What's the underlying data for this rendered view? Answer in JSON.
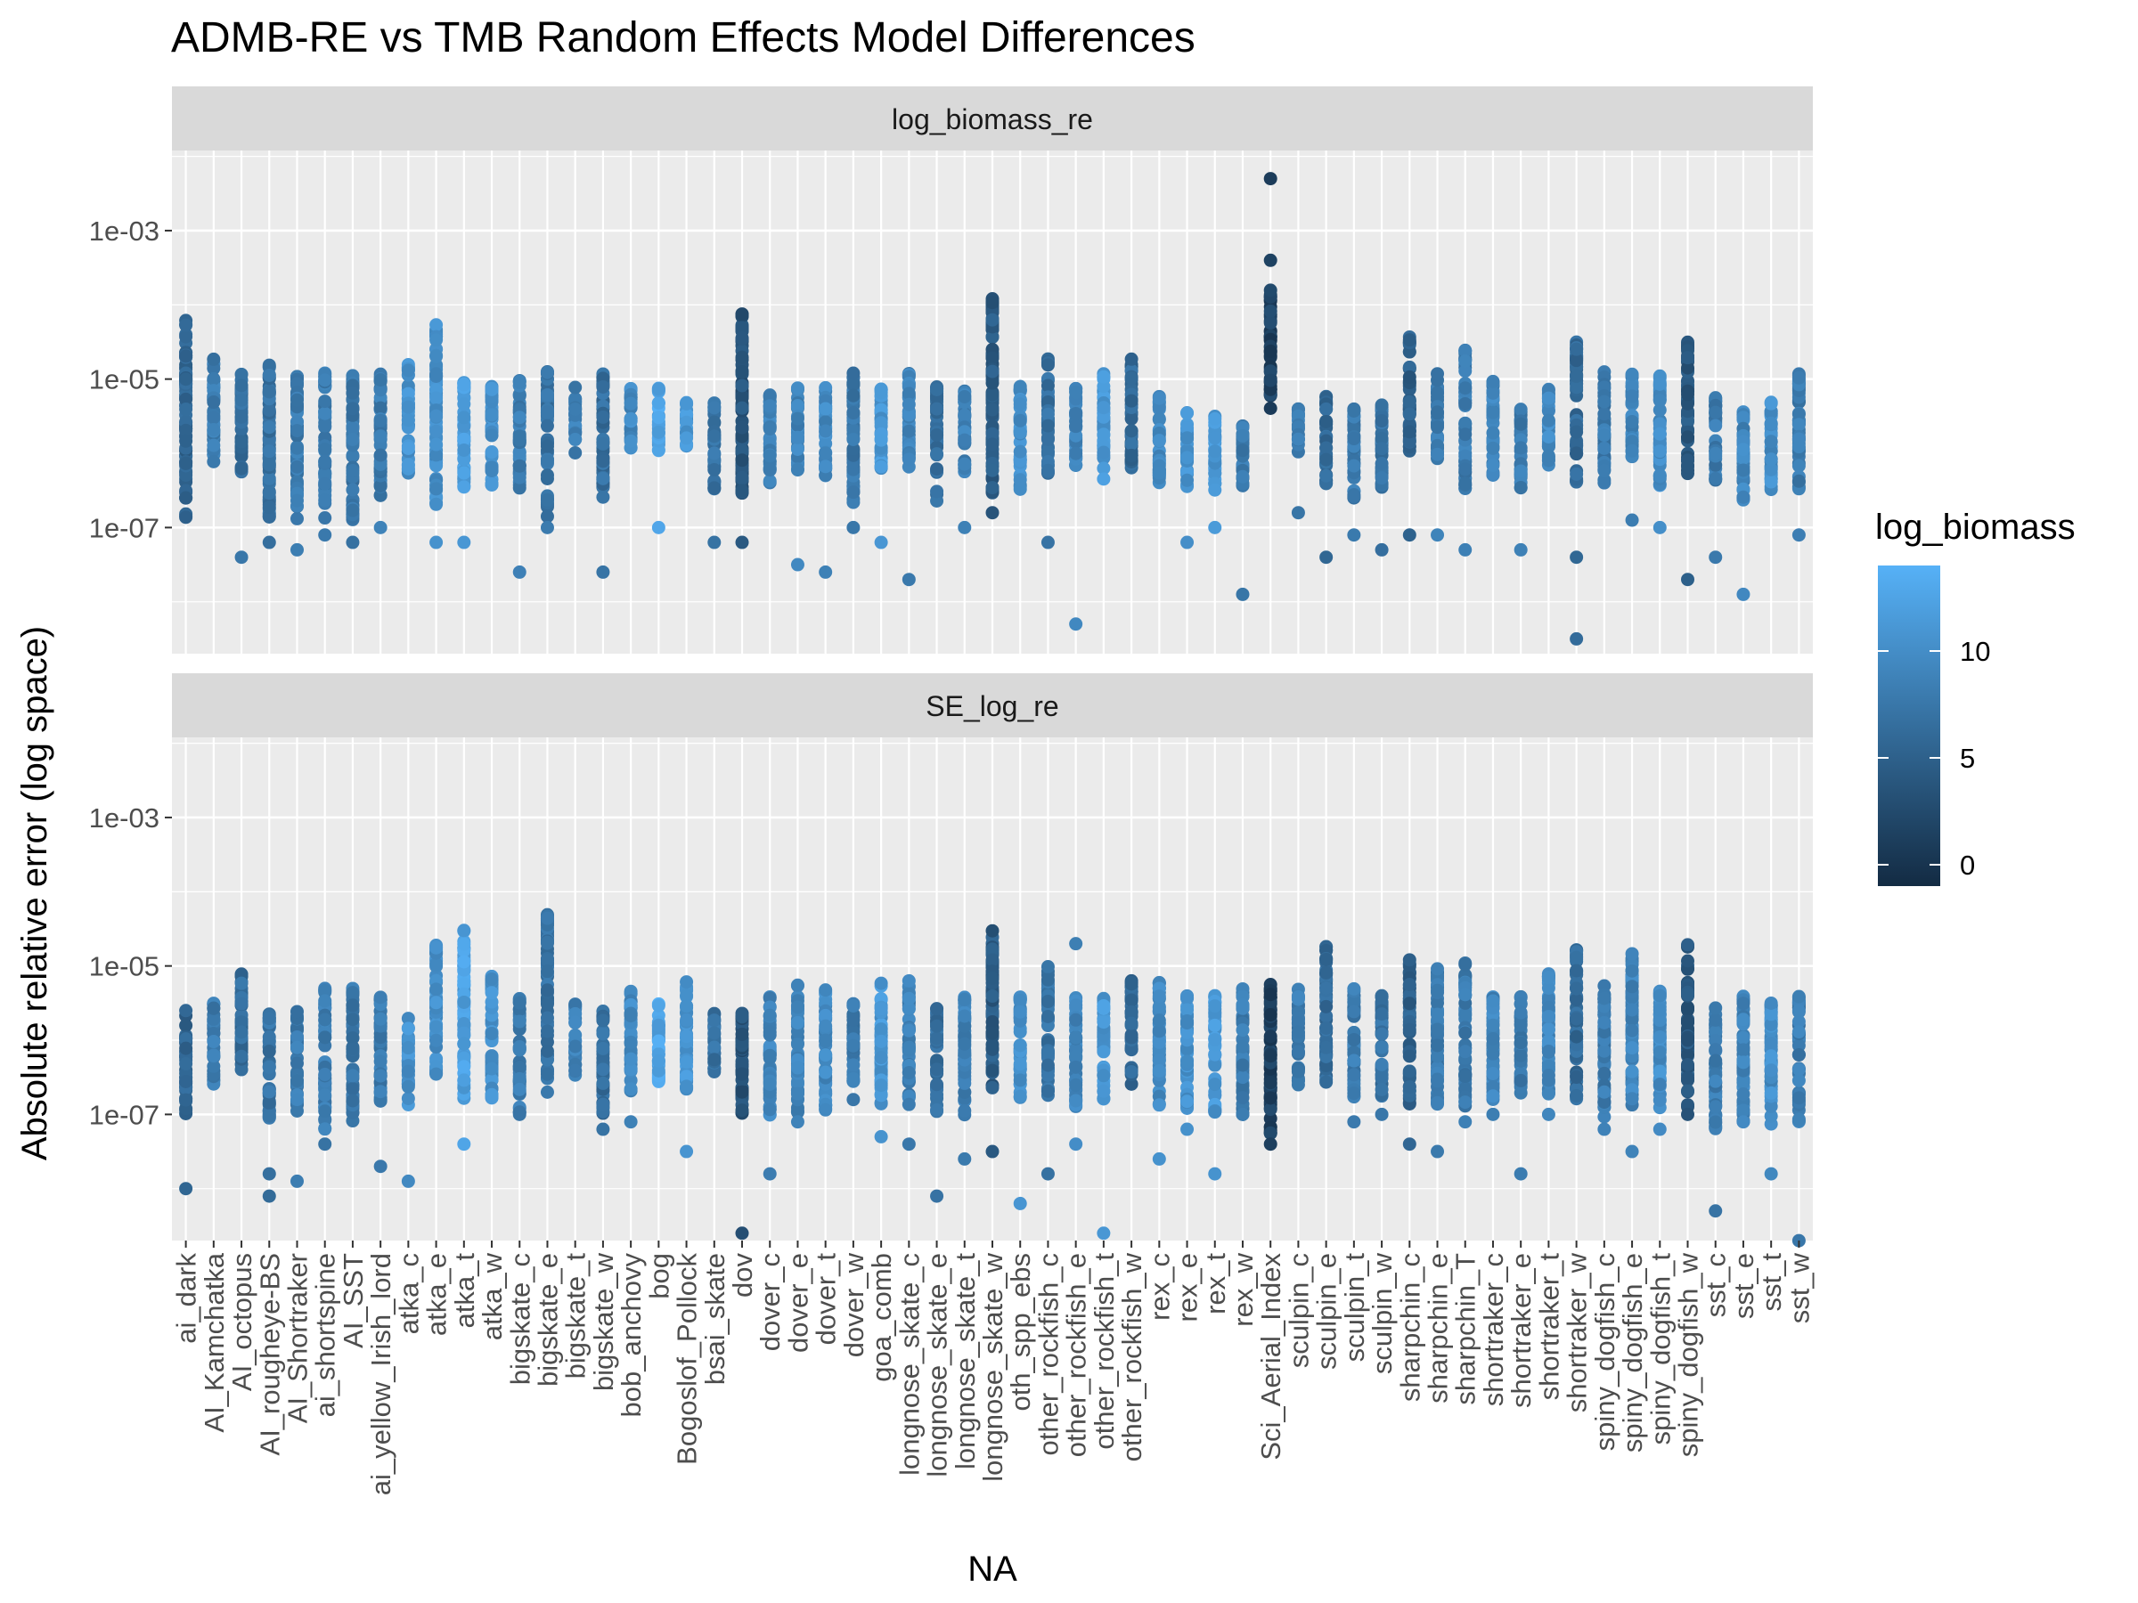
{
  "chart_data": {
    "type": "scatter",
    "title": "ADMB-RE vs TMB Random Effects Model Differences",
    "xlabel": "NA",
    "ylabel": "Absolute relative error (log space)",
    "y_scale": "log10",
    "ylim": [
      2e-09,
      0.012
    ],
    "y_ticks": [
      {
        "value": 0.001,
        "label": "1e-03"
      },
      {
        "value": 1e-05,
        "label": "1e-05"
      },
      {
        "value": 1e-07,
        "label": "1e-07"
      }
    ],
    "grid": true,
    "color_scale": {
      "variable": "log_biomass",
      "low_color": "#132B43",
      "high_color": "#56B1F7",
      "range": [
        -1,
        14
      ],
      "ticks": [
        0,
        5,
        10
      ]
    },
    "legend_position": "right",
    "categories": [
      "ai_dark",
      "AI_Kamchatka",
      "AI_octopus",
      "AI_rougheye-BS",
      "AI_Shortraker",
      "ai_shortspine",
      "AI_SST",
      "ai_yellow_Irish_lord",
      "atka_c",
      "atka_e",
      "atka_t",
      "atka_w",
      "bigskate_c",
      "bigskate_e",
      "bigskate_t",
      "bigskate_w",
      "bob_anchovy",
      "bog",
      "Bogoslof_Pollock",
      "bsai_skate",
      "dov",
      "dover_c",
      "dover_e",
      "dover_t",
      "dover_w",
      "goa_comb",
      "longnose_skate_c",
      "longnose_skate_e",
      "longnose_skate_t",
      "longnose_skate_w",
      "oth_spp_ebs",
      "other_rockfish_c",
      "other_rockfish_e",
      "other_rockfish_t",
      "other_rockfish_w",
      "rex_c",
      "rex_e",
      "rex_t",
      "rex_w",
      "Sci_Aerial_Index",
      "sculpin_c",
      "sculpin_e",
      "sculpin_t",
      "sculpin_w",
      "sharpchin_c",
      "sharpchin_e",
      "sharpchin_T",
      "shortraker_c",
      "shortraker_e",
      "shortraker_t",
      "shortraker_w",
      "spiny_dogfish_c",
      "spiny_dogfish_e",
      "spiny_dogfish_t",
      "spiny_dogfish_w",
      "sst_c",
      "sst_e",
      "sst_t",
      "sst_w"
    ],
    "log_biomass_by_category": [
      5.5,
      8,
      6.5,
      7,
      8,
      8,
      7.5,
      8,
      10.5,
      10,
      12,
      10.5,
      8,
      7,
      8.5,
      6.5,
      9.5,
      12.5,
      11,
      7,
      3.5,
      9,
      9,
      9.5,
      7.5,
      11,
      8.5,
      6.5,
      8.5,
      4.5,
      10,
      7,
      9,
      11,
      6,
      9.5,
      10.5,
      11,
      8,
      1.5,
      8,
      6,
      8,
      7,
      5,
      8,
      8,
      9,
      8,
      9.5,
      6,
      8,
      9,
      10,
      4,
      8,
      9,
      10,
      8
    ],
    "panels": [
      {
        "name": "log_biomass_re",
        "clusters": [
          [
            -6.9,
            -4.2
          ],
          [
            -6.2,
            -4.7
          ],
          [
            -6.3,
            -4.9
          ],
          [
            -6.9,
            -4.8
          ],
          [
            -6.9,
            -4.9
          ],
          [
            -6.9,
            -4.9
          ],
          [
            -6.9,
            -4.9
          ],
          [
            -6.6,
            -4.9
          ],
          [
            -6.3,
            -4.8
          ],
          [
            -6.7,
            -4.2
          ],
          [
            -6.5,
            -5.0
          ],
          [
            -6.5,
            -5.0
          ],
          [
            -6.5,
            -5.0
          ],
          [
            -6.9,
            -4.9
          ],
          [
            -6.0,
            -5.1
          ],
          [
            -6.7,
            -4.9
          ],
          [
            -6.0,
            -5.1
          ],
          [
            -6.0,
            -5.1
          ],
          [
            -6.0,
            -5.3
          ],
          [
            -6.5,
            -5.3
          ],
          [
            -6.6,
            -4.1
          ],
          [
            -6.4,
            -5.1
          ],
          [
            -6.3,
            -5.1
          ],
          [
            -6.3,
            -5.1
          ],
          [
            -6.7,
            -4.9
          ],
          [
            -6.3,
            -5.1
          ],
          [
            -6.2,
            -4.9
          ],
          [
            -6.7,
            -5.1
          ],
          [
            -6.3,
            -5.1
          ],
          [
            -6.6,
            -3.9
          ],
          [
            -6.5,
            -5.1
          ],
          [
            -6.3,
            -4.7
          ],
          [
            -6.3,
            -5.1
          ],
          [
            -6.4,
            -4.9
          ],
          [
            -6.2,
            -4.7
          ],
          [
            -6.5,
            -5.2
          ],
          [
            -6.5,
            -5.4
          ],
          [
            -6.5,
            -5.5
          ],
          [
            -6.5,
            -5.6
          ],
          [
            -5.4,
            -3.8
          ],
          [
            -6.0,
            -5.4
          ],
          [
            -6.5,
            -5.2
          ],
          [
            -6.7,
            -5.4
          ],
          [
            -6.5,
            -5.3
          ],
          [
            -6.0,
            -4.4
          ],
          [
            -6.1,
            -4.9
          ],
          [
            -6.5,
            -4.6
          ],
          [
            -6.3,
            -5.0
          ],
          [
            -6.5,
            -5.4
          ],
          [
            -6.2,
            -5.1
          ],
          [
            -6.4,
            -4.5
          ],
          [
            -6.4,
            -4.9
          ],
          [
            -6.1,
            -4.9
          ],
          [
            -6.5,
            -4.9
          ],
          [
            -6.3,
            -4.5
          ],
          [
            -6.4,
            -5.2
          ],
          [
            -6.7,
            -5.4
          ],
          [
            -6.5,
            -5.3
          ],
          [
            -6.5,
            -4.9
          ]
        ],
        "outliers": [
          [
            0,
            -6.6
          ],
          [
            2,
            -7.4
          ],
          [
            3,
            -7.2
          ],
          [
            4,
            -7.3
          ],
          [
            5,
            -7.1
          ],
          [
            6,
            -7.2
          ],
          [
            7,
            -7.0
          ],
          [
            9,
            -7.2
          ],
          [
            10,
            -7.2
          ],
          [
            12,
            -7.6
          ],
          [
            13,
            -7.0
          ],
          [
            15,
            -7.6
          ],
          [
            17,
            -7.0
          ],
          [
            19,
            -7.2
          ],
          [
            20,
            -7.2
          ],
          [
            22,
            -7.5
          ],
          [
            23,
            -7.6
          ],
          [
            24,
            -7.0
          ],
          [
            25,
            -7.2
          ],
          [
            26,
            -7.7
          ],
          [
            28,
            -7.0
          ],
          [
            29,
            -6.8
          ],
          [
            31,
            -7.2
          ],
          [
            32,
            -8.3
          ],
          [
            36,
            -7.2
          ],
          [
            37,
            -7.0
          ],
          [
            38,
            -7.9
          ],
          [
            39,
            -2.3
          ],
          [
            39,
            -3.4
          ],
          [
            40,
            -6.8
          ],
          [
            41,
            -7.4
          ],
          [
            42,
            -7.1
          ],
          [
            43,
            -7.3
          ],
          [
            44,
            -7.1
          ],
          [
            45,
            -7.1
          ],
          [
            46,
            -7.3
          ],
          [
            48,
            -7.3
          ],
          [
            50,
            -8.5
          ],
          [
            50,
            -7.4
          ],
          [
            52,
            -6.9
          ],
          [
            53,
            -7.0
          ],
          [
            54,
            -7.7
          ],
          [
            55,
            -7.4
          ],
          [
            56,
            -7.9
          ],
          [
            58,
            -7.1
          ]
        ]
      },
      {
        "name": "SE_log_re",
        "clusters": [
          [
            -7.0,
            -5.6
          ],
          [
            -6.6,
            -5.5
          ],
          [
            -6.5,
            -5.1
          ],
          [
            -7.1,
            -5.6
          ],
          [
            -7.0,
            -5.6
          ],
          [
            -7.2,
            -5.3
          ],
          [
            -7.1,
            -5.3
          ],
          [
            -6.9,
            -5.4
          ],
          [
            -6.9,
            -5.7
          ],
          [
            -6.6,
            -4.7
          ],
          [
            -6.8,
            -4.5
          ],
          [
            -6.8,
            -5.1
          ],
          [
            -7.0,
            -5.4
          ],
          [
            -6.6,
            -4.3
          ],
          [
            -6.5,
            -5.5
          ],
          [
            -7.0,
            -5.6
          ],
          [
            -6.8,
            -5.3
          ],
          [
            -6.7,
            -5.5
          ],
          [
            -6.7,
            -5.2
          ],
          [
            -6.5,
            -5.5
          ],
          [
            -7.0,
            -5.6
          ],
          [
            -7.1,
            -5.4
          ],
          [
            -7.0,
            -5.2
          ],
          [
            -7.0,
            -5.3
          ],
          [
            -6.6,
            -5.5
          ],
          [
            -6.9,
            -5.2
          ],
          [
            -6.9,
            -5.2
          ],
          [
            -7.0,
            -5.5
          ],
          [
            -7.1,
            -5.4
          ],
          [
            -6.7,
            -4.5
          ],
          [
            -6.9,
            -5.4
          ],
          [
            -6.8,
            -5.0
          ],
          [
            -6.9,
            -5.4
          ],
          [
            -6.8,
            -5.4
          ],
          [
            -6.7,
            -5.2
          ],
          [
            -6.9,
            -5.2
          ],
          [
            -7.1,
            -5.4
          ],
          [
            -7.0,
            -5.4
          ],
          [
            -7.0,
            -5.3
          ],
          [
            -7.3,
            -5.2
          ],
          [
            -6.6,
            -5.3
          ],
          [
            -6.6,
            -4.7
          ],
          [
            -6.8,
            -5.3
          ],
          [
            -6.8,
            -5.4
          ],
          [
            -6.9,
            -4.9
          ],
          [
            -6.9,
            -5.0
          ],
          [
            -6.9,
            -4.9
          ],
          [
            -6.8,
            -5.4
          ],
          [
            -6.8,
            -5.4
          ],
          [
            -6.9,
            -5.0
          ],
          [
            -6.8,
            -4.6
          ],
          [
            -7.1,
            -5.2
          ],
          [
            -7.0,
            -4.8
          ],
          [
            -7.0,
            -5.3
          ],
          [
            -6.9,
            -4.7
          ],
          [
            -7.2,
            -5.5
          ],
          [
            -7.1,
            -5.4
          ],
          [
            -7.2,
            -5.4
          ],
          [
            -7.1,
            -5.4
          ]
        ],
        "outliers": [
          [
            0,
            -8.0
          ],
          [
            3,
            -7.8
          ],
          [
            3,
            -8.1
          ],
          [
            4,
            -7.9
          ],
          [
            5,
            -7.4
          ],
          [
            7,
            -7.7
          ],
          [
            8,
            -7.9
          ],
          [
            10,
            -7.4
          ],
          [
            12,
            -7.0
          ],
          [
            13,
            -6.7
          ],
          [
            15,
            -7.2
          ],
          [
            16,
            -7.1
          ],
          [
            18,
            -7.5
          ],
          [
            20,
            -8.6
          ],
          [
            21,
            -7.8
          ],
          [
            22,
            -7.1
          ],
          [
            24,
            -6.8
          ],
          [
            25,
            -7.3
          ],
          [
            26,
            -7.4
          ],
          [
            27,
            -8.1
          ],
          [
            28,
            -7.6
          ],
          [
            29,
            -7.5
          ],
          [
            30,
            -8.2
          ],
          [
            31,
            -7.8
          ],
          [
            32,
            -4.7
          ],
          [
            32,
            -7.4
          ],
          [
            33,
            -8.6
          ],
          [
            35,
            -7.6
          ],
          [
            36,
            -7.2
          ],
          [
            37,
            -7.8
          ],
          [
            38,
            -7.0
          ],
          [
            39,
            -7.4
          ],
          [
            40,
            -6.6
          ],
          [
            42,
            -7.1
          ],
          [
            43,
            -7.0
          ],
          [
            44,
            -7.4
          ],
          [
            45,
            -7.5
          ],
          [
            46,
            -7.1
          ],
          [
            47,
            -7.0
          ],
          [
            48,
            -7.8
          ],
          [
            49,
            -7.0
          ],
          [
            51,
            -7.2
          ],
          [
            52,
            -7.5
          ],
          [
            53,
            -7.2
          ],
          [
            54,
            -7.0
          ],
          [
            55,
            -8.3
          ],
          [
            56,
            -7.1
          ],
          [
            57,
            -7.8
          ],
          [
            58,
            -8.7
          ]
        ]
      }
    ]
  }
}
